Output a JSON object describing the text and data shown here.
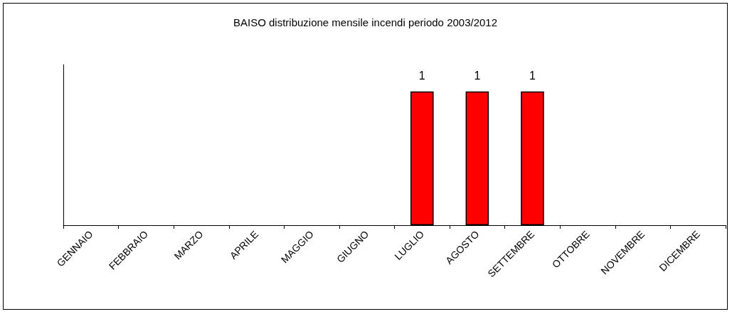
{
  "chart_data": {
    "type": "bar",
    "title": "BAISO distribuzione mensile incendi periodo 2003/2012",
    "categories": [
      "GENNAIO",
      "FEBBRAIO",
      "MARZO",
      "APRILE",
      "MAGGIO",
      "GIUGNO",
      "LUGLIO",
      "AGOSTO",
      "SETTEMBRE",
      "OTTOBRE",
      "NOVEMBRE",
      "DICEMBRE"
    ],
    "values": [
      0,
      0,
      0,
      0,
      0,
      0,
      1,
      1,
      1,
      0,
      0,
      0
    ],
    "value_labels": [
      null,
      null,
      null,
      null,
      null,
      null,
      "1",
      "1",
      "1",
      null,
      null,
      null
    ],
    "color": "#ff0000",
    "ylim": [
      0,
      1.2
    ],
    "tick_labels": "x"
  }
}
